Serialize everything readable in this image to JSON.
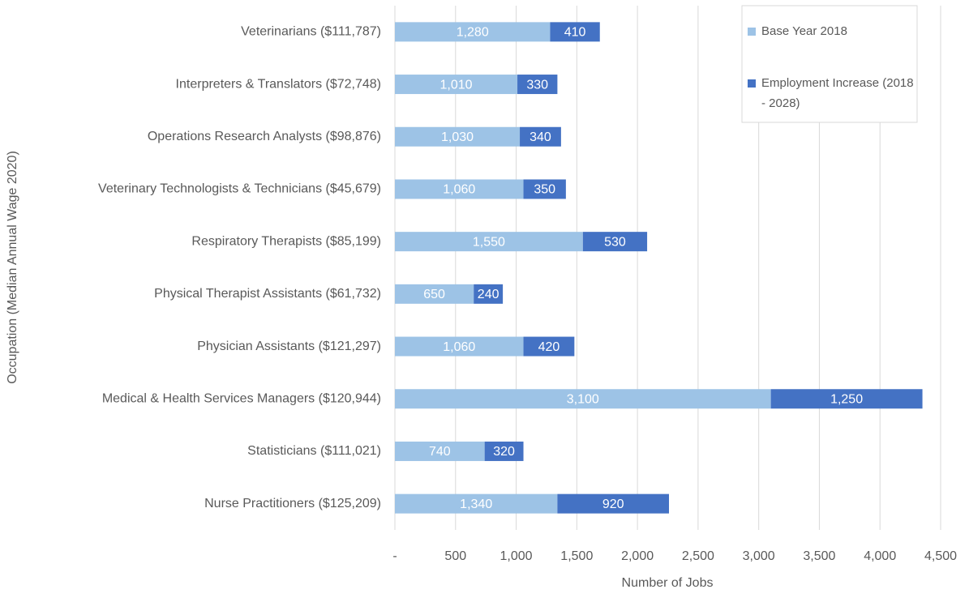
{
  "chart_data": {
    "type": "stacked_barh",
    "x_label": "Number of Jobs",
    "y_label": "Occupation (Median Annual Wage 2020)",
    "categories": [
      "Veterinarians ($111,787)",
      "Interpreters & Translators ($72,748)",
      "Operations Research Analysts ($98,876)",
      "Veterinary Technologists & Technicians ($45,679)",
      "Respiratory Therapists ($85,199)",
      "Physical Therapist Assistants ($61,732)",
      "Physician Assistants ($121,297)",
      "Medical & Health Services Managers ($120,944)",
      "Statisticians ($111,021)",
      "Nurse Practitioners ($125,209)"
    ],
    "series": [
      {
        "name": "Base Year 2018",
        "color": "#9dc3e6",
        "values": [
          1280,
          1010,
          1030,
          1060,
          1550,
          650,
          1060,
          3100,
          740,
          1340
        ],
        "value_labels": [
          "1,280",
          "1,010",
          "1,030",
          "1,060",
          "1,550",
          "650",
          "1,060",
          "3,100",
          "740",
          "1,340"
        ]
      },
      {
        "name": "Employment Increase (2018 - 2028)",
        "color": "#4472c4",
        "values": [
          410,
          330,
          340,
          350,
          530,
          240,
          420,
          1250,
          320,
          920
        ],
        "value_labels": [
          "410",
          "330",
          "340",
          "350",
          "530",
          "240",
          "420",
          "1,250",
          "320",
          "920"
        ]
      }
    ],
    "xlim": [
      0,
      4500
    ],
    "xticks": [
      {
        "value": 0,
        "label": "-"
      },
      500,
      {
        "value": 1000,
        "label": "1,000"
      },
      {
        "value": 1500,
        "label": "1,500"
      },
      {
        "value": 2000,
        "label": "2,000"
      },
      {
        "value": 2500,
        "label": "2,500"
      },
      {
        "value": 3000,
        "label": "3,000"
      },
      {
        "value": 3500,
        "label": "3,500"
      },
      {
        "value": 4000,
        "label": "4,000"
      },
      {
        "value": 4500,
        "label": "4,500"
      }
    ],
    "grid": true,
    "legend": "top-right"
  }
}
